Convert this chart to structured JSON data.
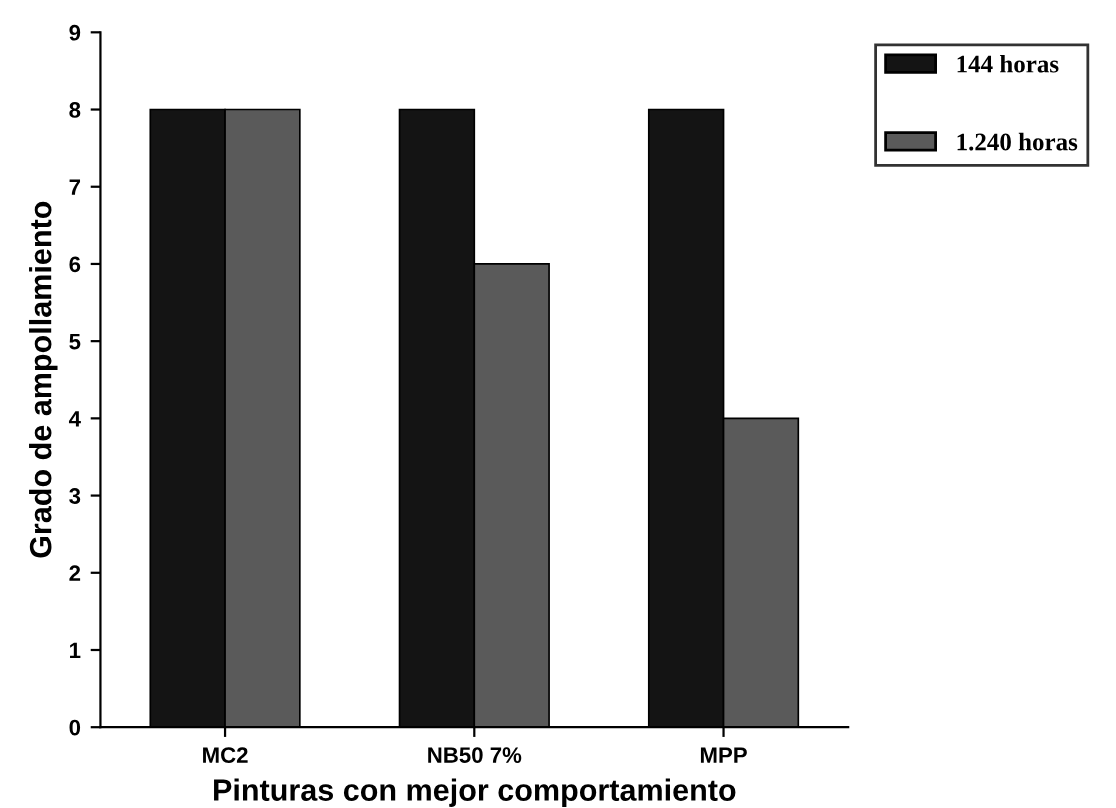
{
  "chart_data": {
    "type": "bar",
    "xlabel": "Pinturas con mejor comportamiento",
    "ylabel": "Grado de ampollamiento",
    "categories": [
      "MC2",
      "NB50 7%",
      "MPP"
    ],
    "series": [
      {
        "name": "144 horas",
        "color": "#141414",
        "values": [
          8,
          8,
          8
        ]
      },
      {
        "name": "1.240 horas",
        "color": "#5a5a5a",
        "values": [
          8,
          6,
          4
        ]
      }
    ],
    "ylim": [
      0,
      9
    ],
    "yticks": [
      0,
      1,
      2,
      3,
      4,
      5,
      6,
      7,
      8,
      9
    ],
    "grid": false,
    "legend": "top right"
  }
}
